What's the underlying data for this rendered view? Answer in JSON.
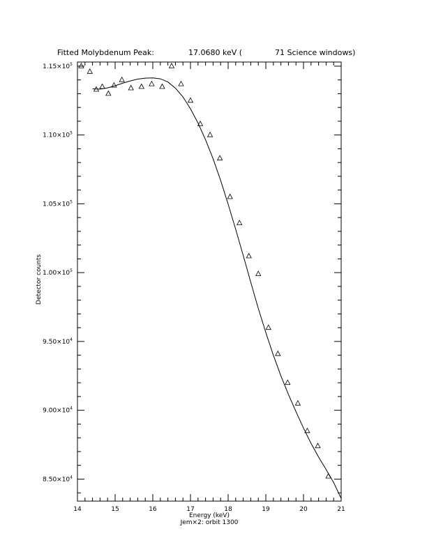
{
  "chart_data": {
    "type": "scatter",
    "title": {
      "prefix": "Fitted Molybdenum Peak:",
      "energy": "17.0680 keV (",
      "windows": "71 Science windows)"
    },
    "xlabel": "Energy (keV)",
    "ylabel": "Detector counts",
    "footer": "Jem×2: orbit 1300",
    "xlim": [
      14,
      21
    ],
    "ylim": [
      83400,
      115300
    ],
    "x_ticks": [
      {
        "v": 14,
        "label": "14"
      },
      {
        "v": 15,
        "label": "15"
      },
      {
        "v": 16,
        "label": "16"
      },
      {
        "v": 17,
        "label": "17"
      },
      {
        "v": 18,
        "label": "18"
      },
      {
        "v": 19,
        "label": "19"
      },
      {
        "v": 20,
        "label": "20"
      },
      {
        "v": 21,
        "label": "21"
      }
    ],
    "y_ticks": [
      {
        "v": 85000,
        "mant": "8.50×10",
        "exp": "4"
      },
      {
        "v": 90000,
        "mant": "9.00×10",
        "exp": "4"
      },
      {
        "v": 95000,
        "mant": "9.50×10",
        "exp": "4"
      },
      {
        "v": 100000,
        "mant": "1.00×10",
        "exp": "5"
      },
      {
        "v": 105000,
        "mant": "1.05×10",
        "exp": "5"
      },
      {
        "v": 110000,
        "mant": "1.10×10",
        "exp": "5"
      },
      {
        "v": 115000,
        "mant": "1.15×10",
        "exp": "5"
      }
    ],
    "x_minor_step": 0.2,
    "y_minor_step": 1000,
    "grid": false,
    "series": [
      {
        "marker": "triangle",
        "points": [
          [
            14.1,
            115000
          ],
          [
            14.33,
            114600
          ],
          [
            14.5,
            113300
          ],
          [
            14.66,
            113500
          ],
          [
            14.82,
            113000
          ],
          [
            14.97,
            113600
          ],
          [
            15.18,
            114000
          ],
          [
            15.42,
            113400
          ],
          [
            15.7,
            113500
          ],
          [
            15.97,
            113700
          ],
          [
            16.25,
            113500
          ],
          [
            16.5,
            115000
          ],
          [
            16.75,
            113700
          ],
          [
            17.0,
            112500
          ],
          [
            17.26,
            110800
          ],
          [
            17.52,
            110000
          ],
          [
            17.78,
            108300
          ],
          [
            18.05,
            105500
          ],
          [
            18.3,
            103600
          ],
          [
            18.55,
            101200
          ],
          [
            18.8,
            99900
          ],
          [
            19.07,
            96000
          ],
          [
            19.32,
            94100
          ],
          [
            19.58,
            92000
          ],
          [
            19.85,
            90500
          ],
          [
            20.1,
            88500
          ],
          [
            20.38,
            87400
          ],
          [
            20.66,
            85200
          ]
        ]
      },
      {
        "line": true,
        "points": [
          [
            14.4,
            113350
          ],
          [
            14.6,
            113330
          ],
          [
            14.8,
            113420
          ],
          [
            15.0,
            113580
          ],
          [
            15.2,
            113760
          ],
          [
            15.4,
            113930
          ],
          [
            15.6,
            114060
          ],
          [
            15.8,
            114130
          ],
          [
            16.0,
            114150
          ],
          [
            16.2,
            114080
          ],
          [
            16.4,
            113850
          ],
          [
            16.6,
            113400
          ],
          [
            16.8,
            112770
          ],
          [
            17.0,
            111900
          ],
          [
            17.2,
            110870
          ],
          [
            17.4,
            109650
          ],
          [
            17.6,
            108270
          ],
          [
            17.8,
            106700
          ],
          [
            18.0,
            104970
          ],
          [
            18.2,
            103150
          ],
          [
            18.4,
            101250
          ],
          [
            18.6,
            99300
          ],
          [
            18.8,
            97400
          ],
          [
            19.0,
            95650
          ],
          [
            19.2,
            94000
          ],
          [
            19.4,
            92500
          ],
          [
            19.6,
            91150
          ],
          [
            19.8,
            89900
          ],
          [
            20.0,
            88700
          ],
          [
            20.2,
            87600
          ],
          [
            20.4,
            86600
          ],
          [
            20.6,
            85700
          ],
          [
            20.8,
            84750
          ],
          [
            21.0,
            83600
          ]
        ]
      }
    ]
  }
}
